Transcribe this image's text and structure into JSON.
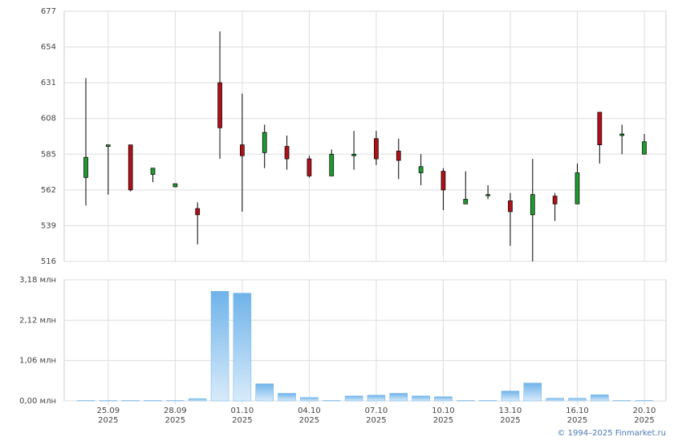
{
  "footer": "© 1994–2025 Finmarket.ru",
  "chart_data": [
    {
      "type": "candlestick",
      "ylim": [
        516,
        677
      ],
      "yticks": [
        516,
        539,
        562,
        585,
        608,
        631,
        654,
        677
      ],
      "grid": true,
      "up_color": "#1f9a2e",
      "down_color": "#b0101a",
      "open": [
        570,
        590,
        591,
        572,
        564,
        550,
        631,
        591,
        586,
        590,
        582,
        571,
        584,
        595,
        587,
        573,
        574,
        553,
        559,
        555,
        546,
        558,
        553,
        612,
        597,
        585
      ],
      "high": [
        634,
        591,
        591,
        576,
        566,
        554,
        664,
        624,
        604,
        597,
        584,
        588,
        600,
        600,
        595,
        585,
        576,
        574,
        565,
        560,
        582,
        560,
        579,
        612,
        604,
        598
      ],
      "low": [
        552,
        559,
        561,
        567,
        564,
        527,
        582,
        548,
        576,
        575,
        570,
        571,
        575,
        578,
        569,
        565,
        549,
        553,
        556,
        526,
        516,
        542,
        553,
        579,
        585,
        585
      ],
      "close": [
        583,
        591,
        562,
        576,
        566,
        546,
        602,
        584,
        599,
        582,
        571,
        585,
        585,
        582,
        581,
        577,
        562,
        556,
        559,
        548,
        559,
        553,
        573,
        591,
        598,
        593
      ]
    },
    {
      "type": "bar",
      "color": "#6fb3ea",
      "grid": true,
      "ylim": [
        0,
        3.18
      ],
      "yticks": [
        {
          "value": 0,
          "label": "0,00 млн"
        },
        {
          "value": 1.06,
          "label": "1,06 млн"
        },
        {
          "value": 2.12,
          "label": "2,12 млн"
        },
        {
          "value": 3.18,
          "label": "3,18 млн"
        }
      ],
      "categories": [
        null,
        "25.09\n2025",
        null,
        null,
        "28.09\n2025",
        null,
        null,
        "01.10\n2025",
        null,
        null,
        "04.10\n2025",
        null,
        null,
        "07.10\n2025",
        null,
        null,
        "10.10\n2025",
        null,
        null,
        "13.10\n2025",
        null,
        null,
        "16.10\n2025",
        null,
        null,
        "20.10\n2025"
      ],
      "values": [
        0.01,
        0.01,
        0.01,
        0.01,
        0.01,
        0.06,
        2.88,
        2.83,
        0.45,
        0.2,
        0.09,
        0.01,
        0.13,
        0.15,
        0.2,
        0.13,
        0.11,
        0.01,
        0.01,
        0.26,
        0.47,
        0.07,
        0.07,
        0.16,
        0.01,
        0.01
      ]
    }
  ]
}
